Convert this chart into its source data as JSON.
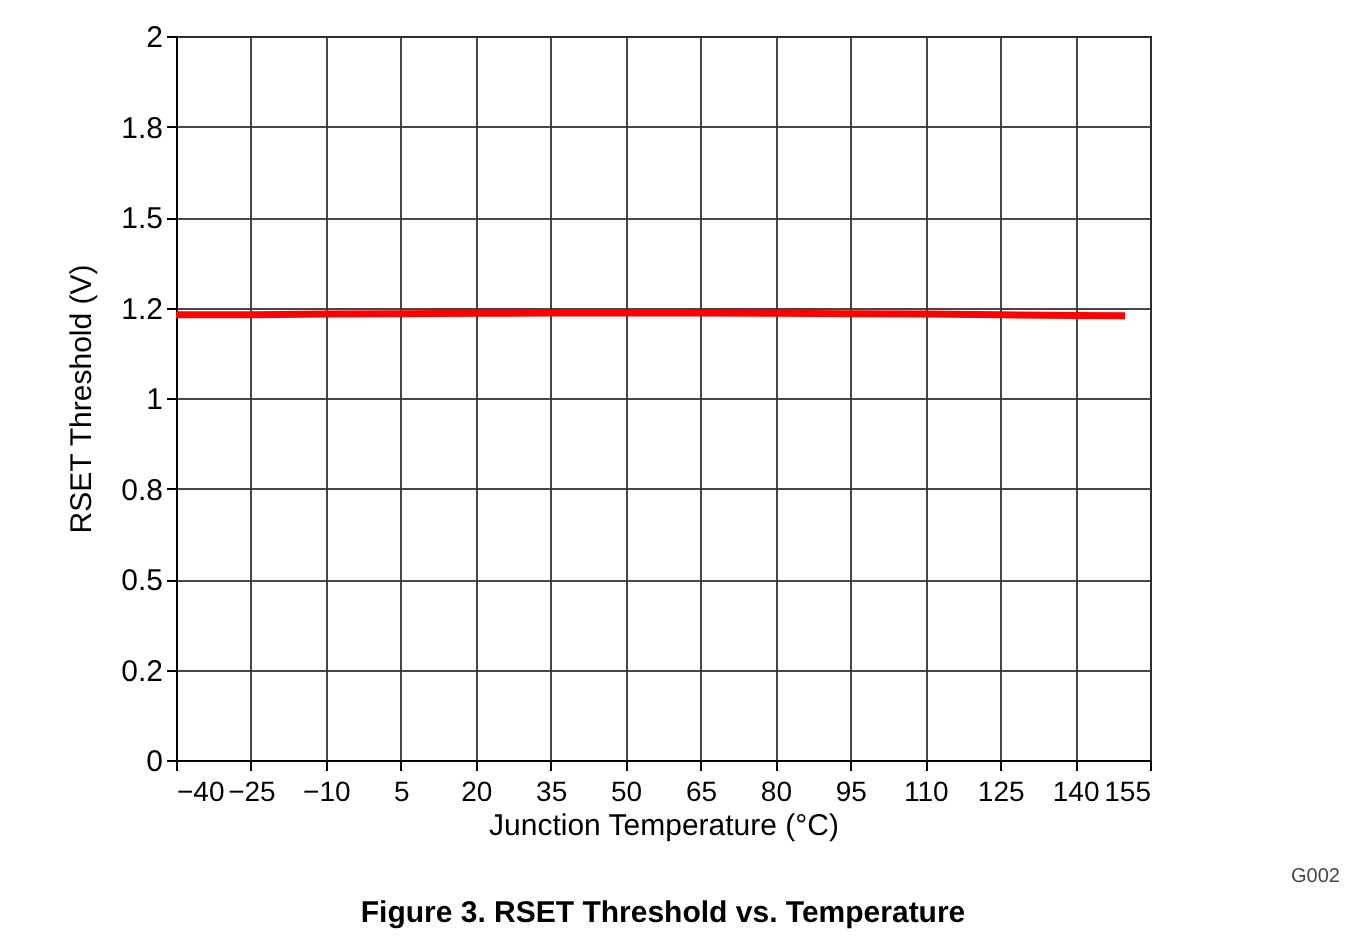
{
  "chart_data": {
    "type": "line",
    "title": "Figure 3. RSET Threshold vs. Temperature",
    "xlabel": "Junction Temperature (°C)",
    "ylabel": "RSET Threshold (V)",
    "x": [
      -40,
      -25,
      -10,
      5,
      20,
      35,
      50,
      65,
      80,
      95,
      110,
      125,
      140,
      150
    ],
    "series": [
      {
        "color": "#ff0000",
        "values": [
          1.23,
          1.23,
          1.232,
          1.233,
          1.234,
          1.235,
          1.235,
          1.235,
          1.234,
          1.233,
          1.232,
          1.23,
          1.228,
          1.227
        ]
      }
    ],
    "xlim": [
      -40,
      155
    ],
    "xticks": [
      {
        "value": -40,
        "label": "−40"
      },
      {
        "value": -25,
        "label": "−25"
      },
      {
        "value": -10,
        "label": "−10"
      },
      5,
      20,
      35,
      50,
      65,
      80,
      95,
      110,
      125,
      140,
      155
    ],
    "ylim": [
      0,
      2
    ],
    "yticks": [
      {
        "value": 0,
        "label": "0"
      },
      {
        "value": 0.25,
        "label": "0.2"
      },
      {
        "value": 0.5,
        "label": "0.5"
      },
      {
        "value": 0.75,
        "label": "0.8"
      },
      {
        "value": 1,
        "label": "1"
      },
      {
        "value": 1.25,
        "label": "1.2"
      },
      {
        "value": 1.5,
        "label": "1.5"
      },
      {
        "value": 1.75,
        "label": "1.8"
      },
      {
        "value": 2,
        "label": "2"
      }
    ],
    "grid": true,
    "marker": "none",
    "line_style": "solid",
    "annotations": [
      "G002"
    ]
  }
}
